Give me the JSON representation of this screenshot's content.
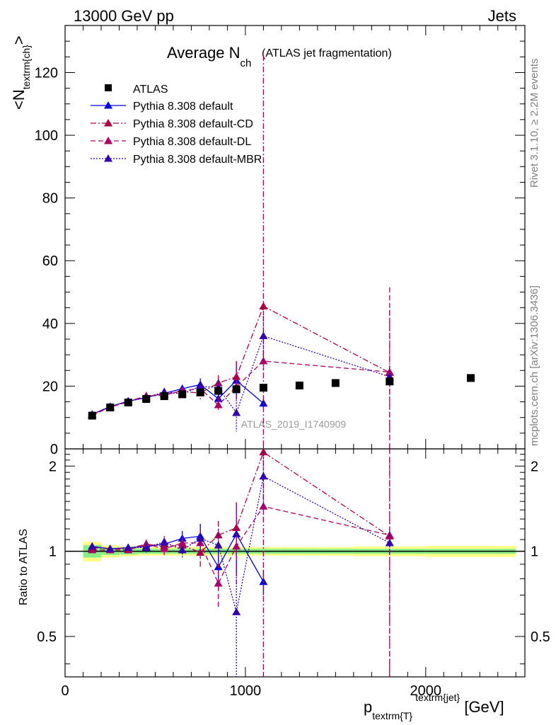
{
  "header": {
    "left": "13000 GeV pp",
    "right": "Jets"
  },
  "side_texts": {
    "rivet": "Rivet 3.1.10, ≥ 2.2M events",
    "mcplots": "mcplots.cern.ch [arXiv:1306.3436]"
  },
  "watermark": "ATLAS_2019_I1740909",
  "chart_data": {
    "type": "scatter",
    "title_main": "Average N",
    "title_sub": "ch",
    "title_rest": "(ATLAS jet fragmentation)",
    "ylabel_main": "<N",
    "ylabel_sub": "textrm{ch}",
    "ylabel_end": ">",
    "xlabel_main": "p",
    "xlabel_sub": "textrm{T}",
    "xlabel_sup": "textrm{jet}",
    "xlabel_unit": "[GeV]",
    "ratio_ylabel": "Ratio to ATLAS",
    "xlim": [
      0,
      2550
    ],
    "ylim_main": [
      0,
      135
    ],
    "ylim_ratio": [
      0.36,
      2.3
    ],
    "ratio_log": true,
    "x_ticks": [
      "0",
      "1000",
      "2000"
    ],
    "main_y_ticks": [
      "0",
      "20",
      "40",
      "60",
      "80",
      "100",
      "120"
    ],
    "ratio_y_ticks": [
      "0.5",
      "1",
      "2"
    ],
    "data": {
      "name": "ATLAS",
      "x": [
        150,
        250,
        350,
        450,
        550,
        650,
        750,
        850,
        950,
        1100,
        1300,
        1500,
        1800,
        2250
      ],
      "y": [
        10.6,
        13.2,
        14.8,
        15.9,
        16.8,
        17.4,
        18.0,
        18.5,
        19.0,
        19.5,
        20.2,
        21.0,
        21.5,
        22.6
      ]
    },
    "ratio_band": {
      "x": [
        100,
        200,
        300,
        400,
        500,
        600,
        700,
        800,
        900,
        1000,
        1200,
        1400,
        1600,
        2000,
        2500
      ],
      "inner": [
        0.05,
        0.03,
        0.025,
        0.02,
        0.02,
        0.02,
        0.02,
        0.02,
        0.02,
        0.02,
        0.02,
        0.02,
        0.02,
        0.02,
        0.02
      ],
      "outer": [
        0.08,
        0.05,
        0.04,
        0.035,
        0.035,
        0.035,
        0.035,
        0.035,
        0.035,
        0.035,
        0.035,
        0.035,
        0.04,
        0.045,
        0.045
      ]
    },
    "series": [
      {
        "name": "Pythia 8.308 default",
        "color": "#0000dd",
        "dash": "",
        "x": [
          150,
          250,
          350,
          450,
          550,
          650,
          750,
          850,
          950,
          1100
        ],
        "y": [
          11.0,
          13.5,
          15.2,
          16.4,
          17.7,
          19.2,
          20.5,
          16.0,
          21.8,
          14.5
        ],
        "err": [
          0.3,
          0.4,
          0.5,
          0.6,
          0.8,
          1.2,
          2.0,
          2.5,
          6.0,
          1.5
        ],
        "ratio": [
          1.04,
          1.02,
          1.03,
          1.04,
          1.06,
          1.11,
          1.13,
          0.88,
          1.15,
          0.78
        ],
        "ratio_err": [
          0.03,
          0.03,
          0.03,
          0.04,
          0.05,
          0.07,
          0.12,
          0.14,
          0.32,
          0.08
        ]
      },
      {
        "name": "Pythia 8.308 default-CD",
        "color": "#aa0044",
        "dash": "8,3,2,3",
        "x": [
          150,
          250,
          350,
          450,
          550,
          650,
          750,
          850,
          950,
          1100,
          1800
        ],
        "y": [
          10.9,
          13.4,
          15.1,
          16.9,
          17.4,
          18.3,
          17.8,
          21.0,
          23.0,
          45.5,
          24.3
        ],
        "err": [
          0.3,
          0.4,
          0.5,
          0.6,
          0.8,
          1.2,
          2.0,
          2.5,
          5.0,
          80,
          20
        ],
        "ratio": [
          1.03,
          1.02,
          1.02,
          1.06,
          1.04,
          1.05,
          0.99,
          1.14,
          1.21,
          2.24,
          1.13
        ],
        "ratio_err": [
          0.03,
          0.03,
          0.03,
          0.04,
          0.05,
          0.07,
          0.12,
          0.14,
          0.28,
          2.0,
          1.0
        ]
      },
      {
        "name": "Pythia 8.308 default-DL",
        "color": "#aa0066",
        "dash": "7,4",
        "x": [
          150,
          250,
          350,
          450,
          550,
          650,
          750,
          850,
          950,
          1100,
          1800
        ],
        "y": [
          10.7,
          13.3,
          15.0,
          16.8,
          17.1,
          18.6,
          19.2,
          14.0,
          19.8,
          28.0,
          24.5
        ],
        "err": [
          0.3,
          0.4,
          0.5,
          0.6,
          0.8,
          1.2,
          2.0,
          2.5,
          5.0,
          3.0,
          27
        ],
        "ratio": [
          1.01,
          1.01,
          1.01,
          1.06,
          1.02,
          1.07,
          1.07,
          0.77,
          1.04,
          1.44,
          1.14
        ],
        "ratio_err": [
          0.03,
          0.03,
          0.03,
          0.04,
          0.05,
          0.07,
          0.12,
          0.14,
          0.28,
          0.15,
          1.2
        ]
      },
      {
        "name": "Pythia 8.308 default-MBR",
        "color": "#3300aa",
        "dash": "2,2",
        "x": [
          150,
          250,
          350,
          450,
          550,
          650,
          750,
          850,
          950,
          1100,
          1800
        ],
        "y": [
          11.0,
          13.5,
          15.2,
          16.3,
          18.2,
          17.5,
          20.0,
          19.5,
          11.5,
          36.0,
          23.0
        ],
        "err": [
          0.3,
          0.4,
          0.5,
          0.6,
          0.8,
          1.2,
          2.0,
          2.5,
          6.0,
          8.0,
          3.0
        ],
        "ratio": [
          1.04,
          1.02,
          1.03,
          1.03,
          1.08,
          1.01,
          1.11,
          1.05,
          0.61,
          1.84,
          1.07
        ],
        "ratio_err": [
          0.03,
          0.03,
          0.03,
          0.04,
          0.05,
          0.07,
          0.12,
          0.14,
          0.3,
          0.4,
          0.1
        ]
      }
    ],
    "legend_placement": "top-left"
  }
}
